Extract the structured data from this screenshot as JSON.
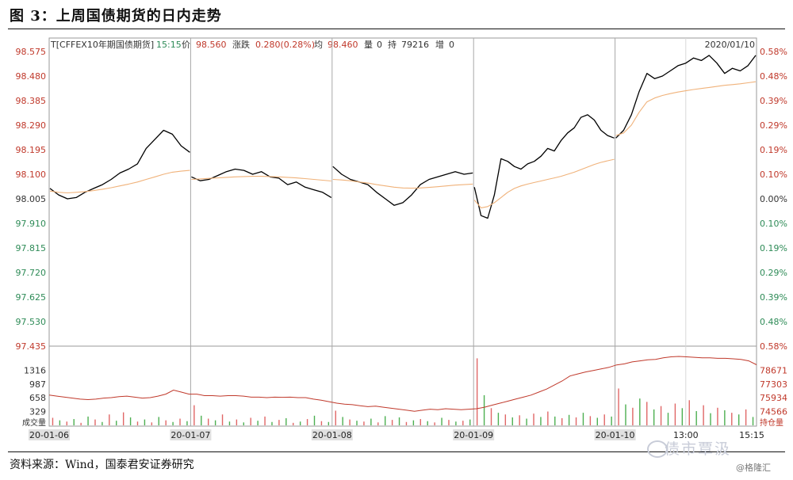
{
  "figure": {
    "title": "图 3：上周国债期货的日内走势",
    "source": "资料来源：Wind，国泰君安证券研究",
    "watermark": "债市覃汲",
    "corner_mark": "@格隆汇"
  },
  "chart_data": {
    "type": "line",
    "header": {
      "symbol": "T[CFFEX10年期国债期货]",
      "time": "15:15",
      "price_label": "价",
      "price": "98.560",
      "change_label": "涨跌",
      "change": "0.280(0.28%)",
      "avg_label": "均",
      "avg": "98.460",
      "volume_label": "量",
      "volume": "0",
      "oi_label": "持",
      "oi": "79216",
      "oi_change_label": "增",
      "oi_change": "0",
      "date": "2020/01/10"
    },
    "price_axis": {
      "ylim": [
        97.435,
        98.575
      ],
      "ticks": [
        "98.575",
        "98.480",
        "98.385",
        "98.290",
        "98.195",
        "98.100",
        "98.005",
        "97.910",
        "97.815",
        "97.720",
        "97.625",
        "97.530",
        "97.435"
      ],
      "pct_ticks": [
        "0.58%",
        "0.48%",
        "0.39%",
        "0.29%",
        "0.19%",
        "0.10%",
        "0.00%",
        "0.10%",
        "0.19%",
        "0.29%",
        "0.39%",
        "0.48%",
        "0.58%"
      ]
    },
    "volume_axis": {
      "label": "成交量",
      "ticks": [
        "1316",
        "987",
        "658",
        "329"
      ],
      "ylim": [
        0,
        1645
      ],
      "oi_label": "持仓量",
      "oi_ticks": [
        "78671",
        "77303",
        "75934",
        "74566"
      ],
      "oi_lim": [
        73198,
        80039
      ]
    },
    "x_ticks": [
      "20-01-06",
      "20-01-07",
      "20-01-08",
      "20-01-09",
      "20-01-10",
      "13:00",
      "15:15"
    ],
    "series": [
      {
        "role": "price",
        "color": "#000000",
        "days": [
          {
            "day": "20-01-06",
            "values": [
              98.045,
              98.02,
              98.005,
              98.01,
              98.03,
              98.045,
              98.06,
              98.08,
              98.105,
              98.12,
              98.14,
              98.2,
              98.235,
              98.27,
              98.255,
              98.21,
              98.185
            ]
          },
          {
            "day": "20-01-07",
            "values": [
              98.09,
              98.075,
              98.08,
              98.095,
              98.11,
              98.12,
              98.115,
              98.1,
              98.11,
              98.09,
              98.085,
              98.06,
              98.07,
              98.05,
              98.04,
              98.03,
              98.01
            ]
          },
          {
            "day": "20-01-08",
            "values": [
              98.13,
              98.1,
              98.08,
              98.07,
              98.06,
              98.03,
              98.005,
              97.98,
              97.99,
              98.02,
              98.06,
              98.08,
              98.09,
              98.1,
              98.11,
              98.1,
              98.105
            ]
          },
          {
            "day": "20-01-09",
            "values": [
              98.05,
              97.94,
              97.93,
              98.02,
              98.16,
              98.15,
              98.13,
              98.12,
              98.14,
              98.15,
              98.17,
              98.2,
              98.19,
              98.23,
              98.26,
              98.28,
              98.32,
              98.33,
              98.31,
              98.27,
              98.25,
              98.24
            ]
          },
          {
            "day": "20-01-10",
            "values": [
              98.24,
              98.27,
              98.33,
              98.42,
              98.49,
              98.47,
              98.48,
              98.5,
              98.52,
              98.53,
              98.55,
              98.54,
              98.56,
              98.53,
              98.49,
              98.51,
              98.5,
              98.52,
              98.56
            ]
          }
        ]
      },
      {
        "role": "average",
        "color": "#f0b27a",
        "days": [
          {
            "day": "20-01-06",
            "values": [
              98.035,
              98.03,
              98.028,
              98.03,
              98.033,
              98.037,
              98.042,
              98.048,
              98.055,
              98.062,
              98.07,
              98.08,
              98.09,
              98.1,
              98.108,
              98.112,
              98.115
            ]
          },
          {
            "day": "20-01-07",
            "values": [
              98.08,
              98.082,
              98.084,
              98.086,
              98.088,
              98.09,
              98.091,
              98.092,
              98.092,
              98.091,
              98.09,
              98.088,
              98.086,
              98.083,
              98.08,
              98.077,
              98.074
            ]
          },
          {
            "day": "20-01-08",
            "values": [
              98.08,
              98.078,
              98.075,
              98.07,
              98.066,
              98.06,
              98.055,
              98.05,
              98.047,
              98.046,
              98.047,
              98.049,
              98.052,
              98.055,
              98.058,
              98.06,
              98.062
            ]
          },
          {
            "day": "20-01-09",
            "values": [
              98.0,
              97.97,
              97.975,
              97.99,
              98.01,
              98.03,
              98.045,
              98.055,
              98.062,
              98.068,
              98.074,
              98.08,
              98.086,
              98.092,
              98.1,
              98.108,
              98.118,
              98.128,
              98.138,
              98.146,
              98.152,
              98.158
            ]
          },
          {
            "day": "20-01-10",
            "values": [
              98.25,
              98.26,
              98.29,
              98.34,
              98.38,
              98.395,
              98.405,
              98.412,
              98.418,
              98.423,
              98.428,
              98.432,
              98.436,
              98.44,
              98.444,
              98.447,
              98.45,
              98.454,
              98.458
            ]
          }
        ]
      },
      {
        "role": "open_interest",
        "color": "#c0392b",
        "values": [
          76200,
          76100,
          76000,
          75900,
          75800,
          75750,
          75800,
          75900,
          75950,
          76050,
          76100,
          76000,
          75900,
          75950,
          76100,
          76300,
          76700,
          76500,
          76300,
          76300,
          76150,
          76150,
          76100,
          76150,
          76150,
          76100,
          76000,
          76000,
          75950,
          76000,
          75980,
          76000,
          75950,
          75950,
          75800,
          75700,
          75550,
          75400,
          75300,
          75250,
          75150,
          75050,
          75100,
          75000,
          74900,
          74800,
          74700,
          74600,
          74700,
          74800,
          74750,
          74850,
          74800,
          74750,
          74800,
          74850,
          75000,
          75200,
          75400,
          75600,
          75800,
          76000,
          76200,
          76500,
          76800,
          77200,
          77600,
          78100,
          78300,
          78500,
          78650,
          78800,
          78950,
          79200,
          79300,
          79500,
          79600,
          79700,
          79750,
          79900,
          80000,
          80039,
          80000,
          79950,
          79900,
          79900,
          79850,
          79850,
          79800,
          79750,
          79600,
          79216
        ]
      }
    ],
    "volume_points": [
      {
        "day": "20-01-06",
        "values": [
          180,
          120,
          90,
          150,
          60,
          210,
          140,
          80,
          260,
          110,
          310,
          190,
          90,
          140,
          70,
          200,
          120,
          80,
          160,
          100
        ]
      },
      {
        "day": "20-01-07",
        "values": [
          480,
          230,
          160,
          120,
          260,
          90,
          140,
          70,
          180,
          110,
          210,
          80,
          130,
          170,
          60,
          90,
          150,
          230,
          100,
          80
        ]
      },
      {
        "day": "20-01-08",
        "values": [
          350,
          200,
          140,
          110,
          90,
          160,
          70,
          220,
          130,
          190,
          80,
          120,
          150,
          100,
          70,
          180,
          130,
          90,
          110,
          140
        ]
      },
      {
        "day": "20-01-09",
        "values": [
          1600,
          720,
          410,
          300,
          260,
          190,
          240,
          160,
          280,
          200,
          330,
          210,
          170,
          250,
          190,
          300,
          220,
          180,
          260,
          210
        ]
      },
      {
        "day": "20-01-10",
        "values": [
          880,
          500,
          420,
          640,
          560,
          380,
          460,
          300,
          520,
          410,
          600,
          340,
          480,
          290,
          420,
          360,
          300,
          260,
          380,
          200
        ]
      }
    ]
  }
}
